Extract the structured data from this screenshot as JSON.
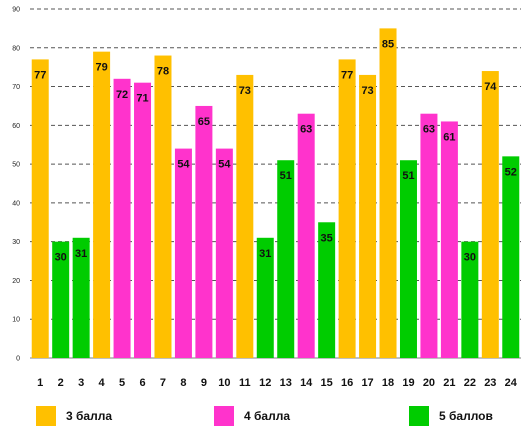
{
  "chart_data": {
    "type": "bar",
    "categories": [
      "1",
      "2",
      "3",
      "4",
      "5",
      "6",
      "7",
      "8",
      "9",
      "10",
      "11",
      "12",
      "13",
      "14",
      "15",
      "16",
      "17",
      "18",
      "19",
      "20",
      "21",
      "22",
      "23",
      "24"
    ],
    "values": [
      77,
      30,
      31,
      79,
      72,
      71,
      78,
      54,
      65,
      54,
      73,
      31,
      51,
      63,
      35,
      77,
      73,
      85,
      51,
      63,
      61,
      30,
      74,
      52
    ],
    "groups": [
      3,
      5,
      5,
      3,
      4,
      4,
      3,
      4,
      4,
      4,
      3,
      5,
      5,
      4,
      5,
      3,
      3,
      3,
      5,
      4,
      4,
      5,
      3,
      5
    ],
    "y_ticks": [
      "0",
      "10",
      "20",
      "30",
      "40",
      "50",
      "60",
      "70",
      "80",
      "90"
    ],
    "ylim": [
      0,
      90
    ],
    "grid": "horizontal dashed",
    "legend_position": "bottom",
    "title": "",
    "xlabel": "",
    "ylabel": "",
    "series": [
      {
        "name": "3 балла",
        "group": 3,
        "color": "#ffc000"
      },
      {
        "name": "4 балла",
        "group": 4,
        "color": "#ff33cc"
      },
      {
        "name": "5 баллов",
        "group": 5,
        "color": "#00cc00"
      }
    ]
  }
}
